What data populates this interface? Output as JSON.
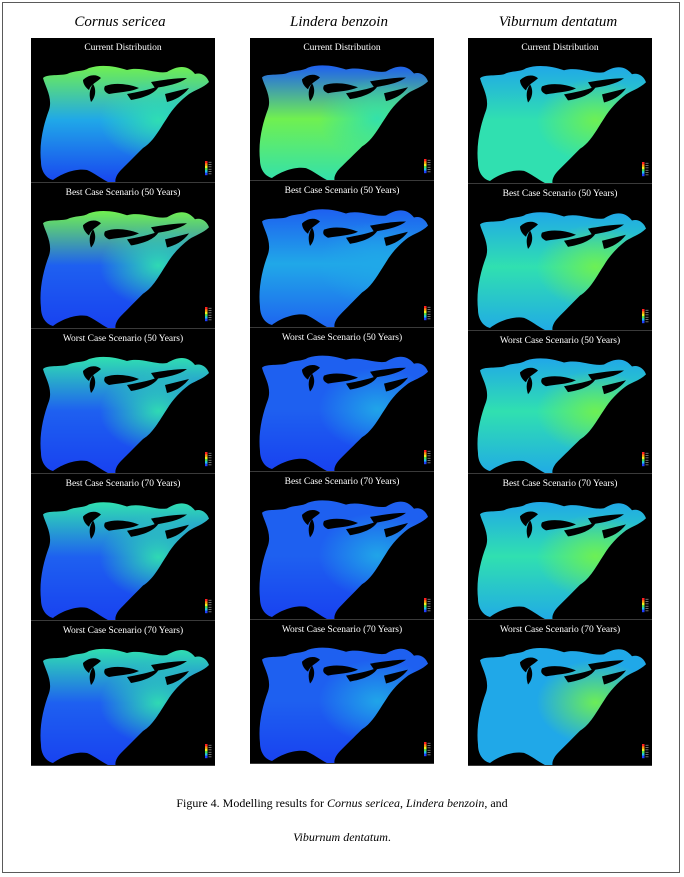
{
  "species": [
    {
      "name": "Cornus sericea",
      "palette": [
        "#1840f0",
        "#1e60f0",
        "#20a8e8",
        "#30e0b0",
        "#70f050",
        "#b8f030"
      ],
      "panels": [
        {
          "title": "Current Distribution",
          "levels": {
            "north": 0.72,
            "central": 0.36,
            "south": 0.06,
            "east": 0.66
          }
        },
        {
          "title": "Best Case Scenario (50 Years)",
          "levels": {
            "north": 0.7,
            "central": 0.25,
            "south": 0.04,
            "east": 0.62
          }
        },
        {
          "title": "Worst Case Scenario (50 Years)",
          "levels": {
            "north": 0.66,
            "central": 0.22,
            "south": 0.03,
            "east": 0.6
          }
        },
        {
          "title": "Best Case Scenario (70 Years)",
          "levels": {
            "north": 0.55,
            "central": 0.16,
            "south": 0.02,
            "east": 0.6
          }
        },
        {
          "title": "Worst Case Scenario (70 Years)",
          "levels": {
            "north": 0.52,
            "central": 0.15,
            "south": 0.02,
            "east": 0.58
          }
        }
      ]
    },
    {
      "name": "Lindera benzoin",
      "palette": [
        "#1840f0",
        "#1e60f0",
        "#20a8e8",
        "#30e0b0",
        "#70f050",
        "#b8f030"
      ],
      "panels": [
        {
          "title": "Current Distribution",
          "levels": {
            "north": 0.28,
            "central": 0.7,
            "south": 0.55,
            "east": 0.55
          }
        },
        {
          "title": "Best Case Scenario (50 Years)",
          "levels": {
            "north": 0.2,
            "central": 0.3,
            "south": 0.12,
            "east": 0.45
          }
        },
        {
          "title": "Worst Case Scenario (50 Years)",
          "levels": {
            "north": 0.14,
            "central": 0.22,
            "south": 0.08,
            "east": 0.4
          }
        },
        {
          "title": "Best Case Scenario (70 Years)",
          "levels": {
            "north": 0.14,
            "central": 0.2,
            "south": 0.06,
            "east": 0.38
          }
        },
        {
          "title": "Worst Case Scenario (70 Years)",
          "levels": {
            "north": 0.1,
            "central": 0.16,
            "south": 0.05,
            "east": 0.35
          }
        }
      ]
    },
    {
      "name": "Viburnum dentatum",
      "palette": [
        "#1840f0",
        "#1e60f0",
        "#20a8e8",
        "#30e0b0",
        "#70f050",
        "#c8f030"
      ],
      "panels": [
        {
          "title": "Current Distribution",
          "levels": {
            "north": 0.35,
            "central": 0.62,
            "south": 0.5,
            "east": 0.8
          }
        },
        {
          "title": "Best Case Scenario (50 Years)",
          "levels": {
            "north": 0.38,
            "central": 0.58,
            "south": 0.42,
            "east": 0.78
          }
        },
        {
          "title": "Worst Case Scenario (50 Years)",
          "levels": {
            "north": 0.36,
            "central": 0.52,
            "south": 0.38,
            "east": 0.72
          }
        },
        {
          "title": "Best Case Scenario (70 Years)",
          "levels": {
            "north": 0.36,
            "central": 0.5,
            "south": 0.34,
            "east": 0.74
          }
        },
        {
          "title": "Worst Case Scenario (70 Years)",
          "levels": {
            "north": 0.34,
            "central": 0.46,
            "south": 0.32,
            "east": 0.72
          }
        }
      ]
    }
  ],
  "caption": {
    "prefix": "Figure 4. Modelling results for ",
    "species1": "Cornus sericea",
    "sep1": ", ",
    "species2": "Lindera benzoin",
    "sep2": ", and",
    "species3": "Viburnum dentatum",
    "suffix": "."
  }
}
